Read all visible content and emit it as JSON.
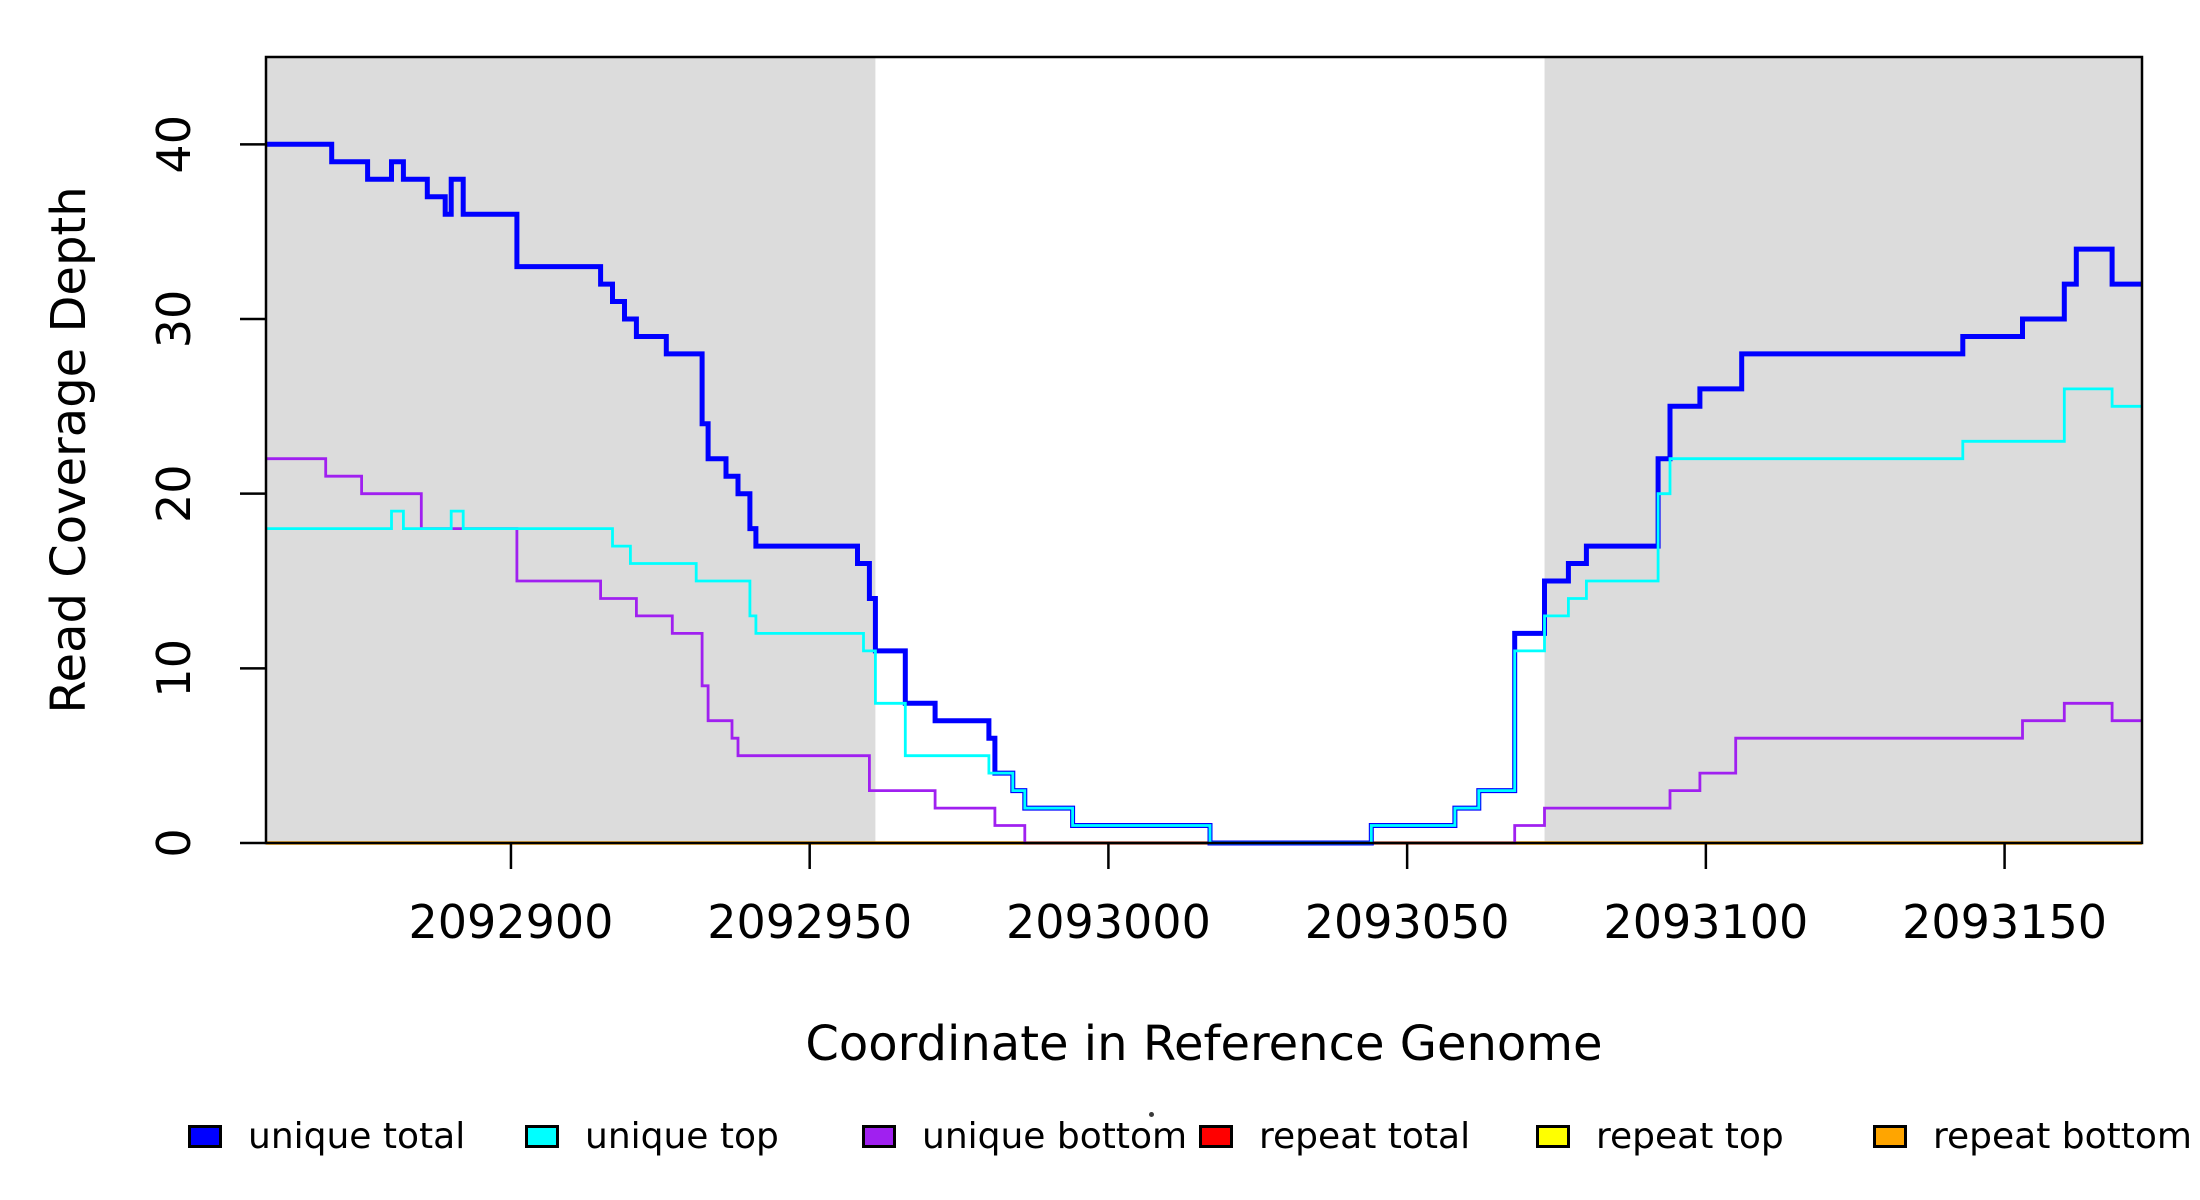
{
  "chart_data": {
    "type": "line",
    "subtype": "step",
    "title": "",
    "xlabel": "Coordinate in Reference Genome",
    "ylabel": "Read Coverage Depth",
    "xlim": [
      2092859,
      2093173
    ],
    "ylim": [
      0,
      45
    ],
    "grid": false,
    "x_ticks": [
      2092900,
      2092950,
      2093000,
      2093050,
      2093100,
      2093150
    ],
    "x_tick_labels": [
      "2092900",
      "2092950",
      "2093000",
      "2093050",
      "2093100",
      "2093150"
    ],
    "y_ticks": [
      0,
      10,
      20,
      30,
      40
    ],
    "y_tick_labels": [
      "0",
      "10",
      "20",
      "30",
      "40"
    ],
    "shaded_regions": [
      {
        "x0": 2092859,
        "x1": 2092961,
        "color": "#DCDCDC"
      },
      {
        "x0": 2093073,
        "x1": 2093173,
        "color": "#DCDCDC"
      }
    ],
    "series": [
      {
        "name": "repeat total",
        "color": "#FF0000",
        "line_width": 2.5,
        "steps": [
          [
            2092859,
            0
          ]
        ]
      },
      {
        "name": "repeat top",
        "color": "#FFFF00",
        "line_width": 2.5,
        "steps": [
          [
            2092859,
            0
          ]
        ]
      },
      {
        "name": "repeat bottom",
        "color": "#FFA500",
        "line_width": 3.5,
        "steps": [
          [
            2092859,
            0
          ]
        ]
      },
      {
        "name": "unique bottom",
        "color": "#A020F0",
        "line_width": 2.8,
        "steps": [
          [
            2092859,
            22
          ],
          [
            2092869,
            21
          ],
          [
            2092875,
            20
          ],
          [
            2092885,
            18
          ],
          [
            2092901,
            15
          ],
          [
            2092915,
            14
          ],
          [
            2092921,
            13
          ],
          [
            2092927,
            12
          ],
          [
            2092932,
            9
          ],
          [
            2092933,
            7
          ],
          [
            2092937,
            6
          ],
          [
            2092938,
            5
          ],
          [
            2092960,
            3
          ],
          [
            2092971,
            2
          ],
          [
            2092981,
            1
          ],
          [
            2092986,
            0
          ],
          [
            2093068,
            1
          ],
          [
            2093073,
            2
          ],
          [
            2093094,
            3
          ],
          [
            2093099,
            4
          ],
          [
            2093105,
            6
          ],
          [
            2093153,
            7
          ],
          [
            2093160,
            8
          ],
          [
            2093168,
            7
          ]
        ]
      },
      {
        "name": "unique total",
        "color": "#0000FF",
        "line_width": 5,
        "steps": [
          [
            2092859,
            40
          ],
          [
            2092870,
            39
          ],
          [
            2092876,
            38
          ],
          [
            2092880,
            39
          ],
          [
            2092882,
            38
          ],
          [
            2092886,
            37
          ],
          [
            2092889,
            36
          ],
          [
            2092890,
            38
          ],
          [
            2092892,
            36
          ],
          [
            2092901,
            33
          ],
          [
            2092915,
            32
          ],
          [
            2092917,
            31
          ],
          [
            2092919,
            30
          ],
          [
            2092921,
            29
          ],
          [
            2092926,
            28
          ],
          [
            2092932,
            24
          ],
          [
            2092933,
            22
          ],
          [
            2092936,
            21
          ],
          [
            2092938,
            20
          ],
          [
            2092940,
            18
          ],
          [
            2092941,
            17
          ],
          [
            2092958,
            16
          ],
          [
            2092960,
            14
          ],
          [
            2092961,
            11
          ],
          [
            2092966,
            8
          ],
          [
            2092971,
            7
          ],
          [
            2092980,
            6
          ],
          [
            2092981,
            4
          ],
          [
            2092984,
            3
          ],
          [
            2092986,
            2
          ],
          [
            2092994,
            1
          ],
          [
            2093017,
            0
          ],
          [
            2093044,
            1
          ],
          [
            2093058,
            2
          ],
          [
            2093062,
            3
          ],
          [
            2093068,
            12
          ],
          [
            2093073,
            15
          ],
          [
            2093077,
            16
          ],
          [
            2093080,
            17
          ],
          [
            2093092,
            22
          ],
          [
            2093094,
            25
          ],
          [
            2093099,
            26
          ],
          [
            2093106,
            28
          ],
          [
            2093143,
            29
          ],
          [
            2093153,
            30
          ],
          [
            2093160,
            32
          ],
          [
            2093162,
            34
          ],
          [
            2093168,
            32
          ]
        ]
      },
      {
        "name": "unique top",
        "color": "#00FFFF",
        "line_width": 2.8,
        "steps": [
          [
            2092859,
            18
          ],
          [
            2092880,
            19
          ],
          [
            2092882,
            18
          ],
          [
            2092890,
            19
          ],
          [
            2092892,
            18
          ],
          [
            2092917,
            17
          ],
          [
            2092920,
            16
          ],
          [
            2092931,
            15
          ],
          [
            2092940,
            13
          ],
          [
            2092941,
            12
          ],
          [
            2092959,
            11
          ],
          [
            2092961,
            8
          ],
          [
            2092966,
            5
          ],
          [
            2092980,
            4
          ],
          [
            2092984,
            3
          ],
          [
            2092986,
            2
          ],
          [
            2092994,
            1
          ],
          [
            2093017,
            0
          ],
          [
            2093044,
            1
          ],
          [
            2093058,
            2
          ],
          [
            2093062,
            3
          ],
          [
            2093068,
            11
          ],
          [
            2093073,
            13
          ],
          [
            2093077,
            14
          ],
          [
            2093080,
            15
          ],
          [
            2093092,
            20
          ],
          [
            2093094,
            22
          ],
          [
            2093143,
            23
          ],
          [
            2093160,
            26
          ],
          [
            2093168,
            25
          ]
        ]
      }
    ],
    "legend_position": "bottom",
    "legend": [
      {
        "label": "unique total",
        "color": "#0000FF"
      },
      {
        "label": "unique top",
        "color": "#00FFFF"
      },
      {
        "label": "unique bottom",
        "color": "#A020F0"
      },
      {
        "label": "repeat total",
        "color": "#FF0000"
      },
      {
        "label": "repeat top",
        "color": "#FFFF00"
      },
      {
        "label": "repeat bottom",
        "color": "#FFA500"
      }
    ],
    "stray_dot": true
  }
}
